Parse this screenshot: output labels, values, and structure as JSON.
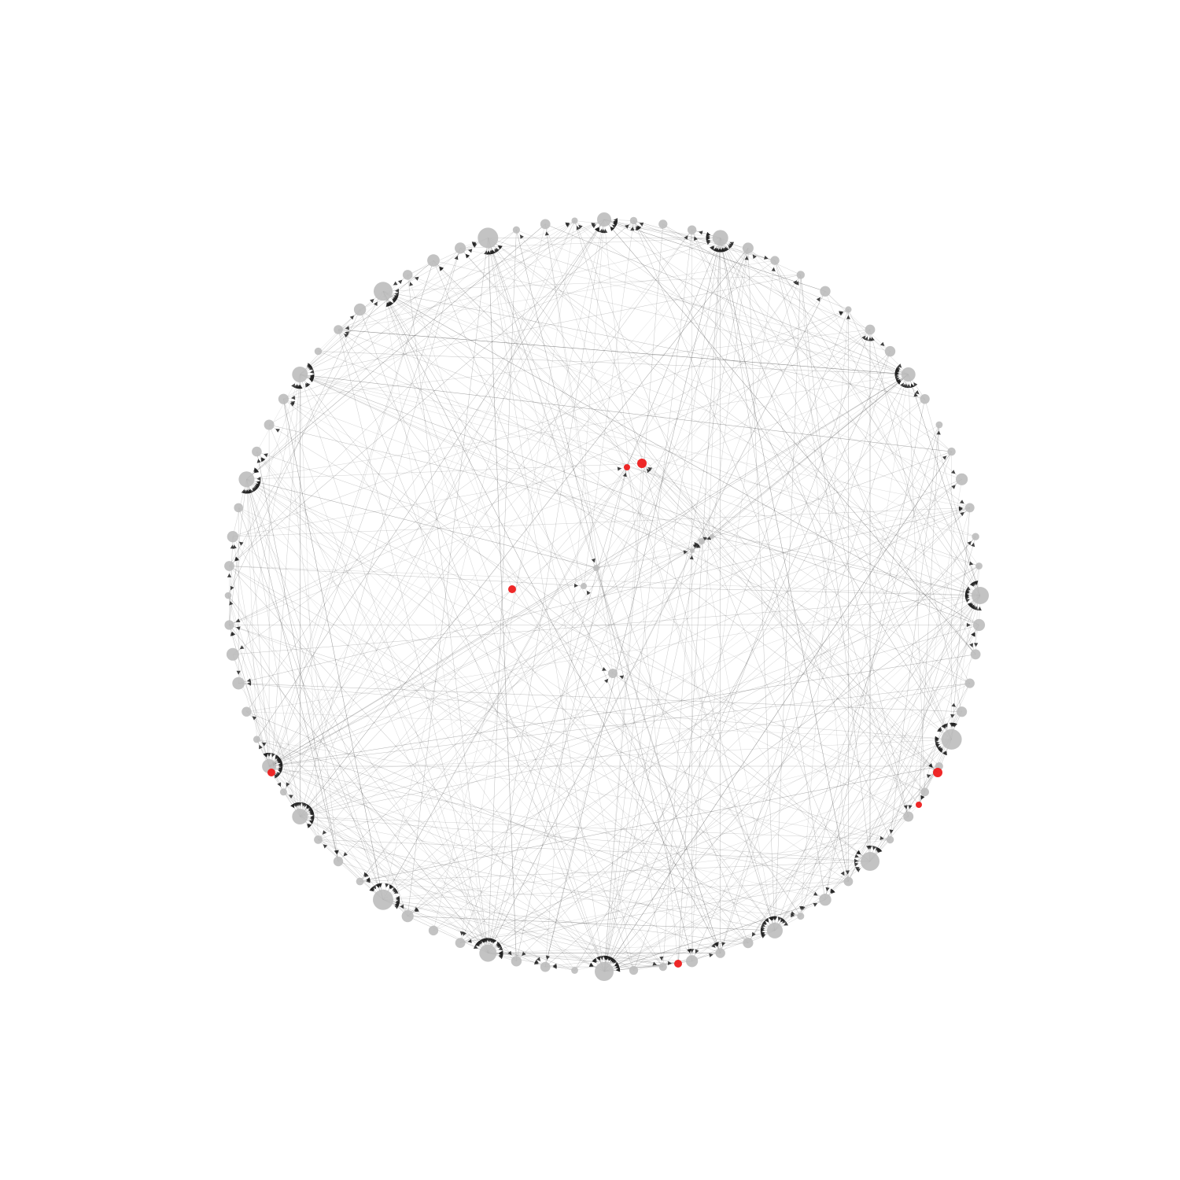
{
  "diagram": {
    "type": "circular-network-graph",
    "directed": true,
    "colors": {
      "background": "#ffffff",
      "edge": "#555555",
      "node_default": "#bdbdbd",
      "node_highlight": "#ee1c1c",
      "arrowhead": "#222222"
    },
    "ring_node_count": 80,
    "inner_node_count": 9,
    "highlighted_node_count": 7,
    "hub_node_count": 16
  }
}
